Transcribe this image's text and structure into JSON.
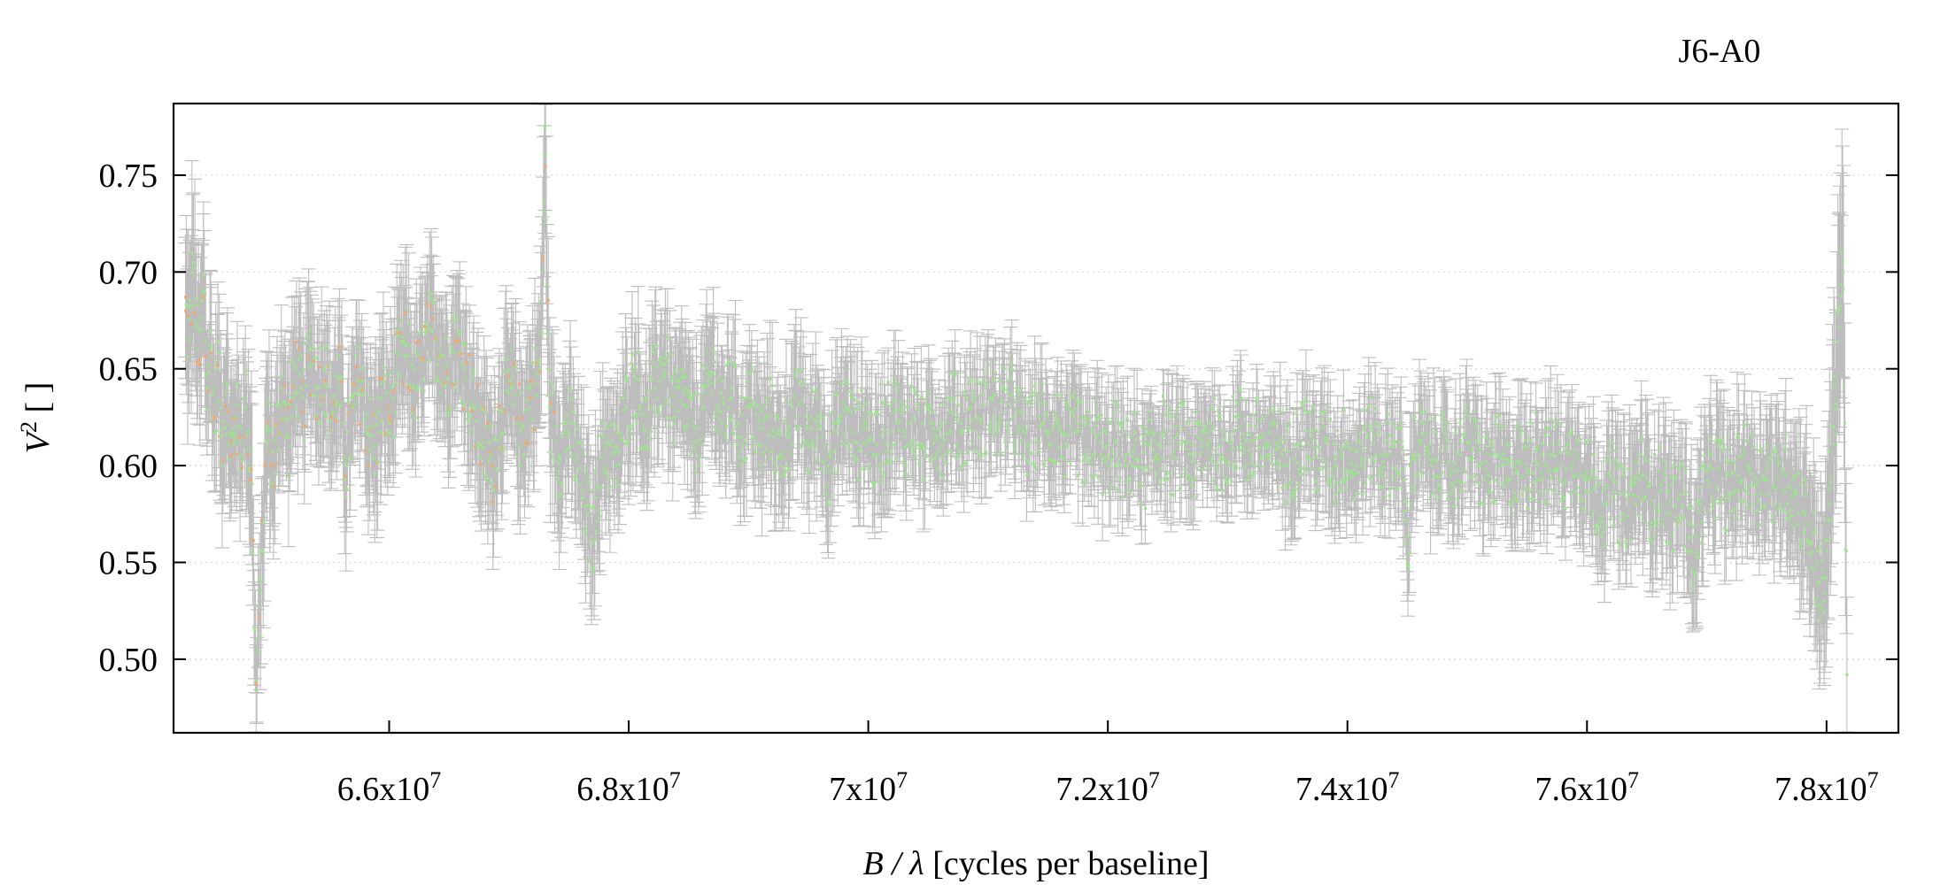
{
  "chart_data": {
    "type": "scatter",
    "title": "J6-A0",
    "xlabel": {
      "var": "B / λ",
      "unit": " [cycles per baseline]"
    },
    "ylabel": {
      "var": "V",
      "exp": "2",
      "unit": " [ ]"
    },
    "xlim": [
      64200000,
      78600000
    ],
    "ylim": [
      0.462,
      0.787
    ],
    "grid": {
      "x": false,
      "y": true
    },
    "x_ticks": [
      {
        "mant": "6.6x10",
        "exp": "7",
        "value": 66000000
      },
      {
        "mant": "6.8x10",
        "exp": "7",
        "value": 68000000
      },
      {
        "mant": "7x10",
        "exp": "7",
        "value": 70000000
      },
      {
        "mant": "7.2x10",
        "exp": "7",
        "value": 72000000
      },
      {
        "mant": "7.4x10",
        "exp": "7",
        "value": 74000000
      },
      {
        "mant": "7.6x10",
        "exp": "7",
        "value": 76000000
      },
      {
        "mant": "7.8x10",
        "exp": "7",
        "value": 78000000
      }
    ],
    "y_ticks": [
      {
        "label": "0.50",
        "value": 0.5
      },
      {
        "label": "0.55",
        "value": 0.55
      },
      {
        "label": "0.60",
        "value": 0.6
      },
      {
        "label": "0.65",
        "value": 0.65
      },
      {
        "label": "0.70",
        "value": 0.7
      },
      {
        "label": "0.75",
        "value": 0.75
      }
    ],
    "colors": {
      "errorbar": "#bdbdbd",
      "point_main": "#9ee38f",
      "point_alt": "#f2a96b",
      "grid": "#d9d9d9"
    },
    "series": [
      {
        "points": [
          [
            64300000,
            0.68,
            0.035
          ],
          [
            64330000,
            0.665,
            0.038
          ],
          [
            64360000,
            0.7,
            0.04
          ],
          [
            64390000,
            0.672,
            0.036
          ],
          [
            64420000,
            0.655,
            0.034
          ],
          [
            64450000,
            0.69,
            0.04
          ],
          [
            64480000,
            0.64,
            0.03
          ],
          [
            64510000,
            0.66,
            0.032
          ],
          [
            64540000,
            0.625,
            0.03
          ],
          [
            64570000,
            0.65,
            0.028
          ],
          [
            64600000,
            0.615,
            0.034
          ],
          [
            64640000,
            0.638,
            0.03
          ],
          [
            64680000,
            0.605,
            0.032
          ],
          [
            64720000,
            0.625,
            0.028
          ],
          [
            64760000,
            0.612,
            0.03
          ],
          [
            64800000,
            0.63,
            0.026
          ],
          [
            64850000,
            0.598,
            0.04
          ],
          [
            64890000,
            0.484,
            0.022
          ],
          [
            64930000,
            0.54,
            0.03
          ],
          [
            64980000,
            0.62,
            0.034
          ],
          [
            65040000,
            0.6,
            0.03
          ],
          [
            65100000,
            0.64,
            0.03
          ],
          [
            65160000,
            0.615,
            0.028
          ],
          [
            65220000,
            0.65,
            0.032
          ],
          [
            65280000,
            0.628,
            0.03
          ],
          [
            65340000,
            0.66,
            0.03
          ],
          [
            65400000,
            0.64,
            0.028
          ],
          [
            65460000,
            0.65,
            0.03
          ],
          [
            65520000,
            0.625,
            0.028
          ],
          [
            65580000,
            0.645,
            0.03
          ],
          [
            65640000,
            0.6,
            0.032
          ],
          [
            65700000,
            0.63,
            0.028
          ],
          [
            65760000,
            0.645,
            0.03
          ],
          [
            65820000,
            0.62,
            0.03
          ],
          [
            65880000,
            0.61,
            0.034
          ],
          [
            65940000,
            0.635,
            0.03
          ],
          [
            66000000,
            0.625,
            0.03
          ],
          [
            66070000,
            0.648,
            0.028
          ],
          [
            66140000,
            0.662,
            0.03
          ],
          [
            66210000,
            0.64,
            0.028
          ],
          [
            66280000,
            0.655,
            0.03
          ],
          [
            66350000,
            0.67,
            0.028
          ],
          [
            66420000,
            0.66,
            0.028
          ],
          [
            66490000,
            0.645,
            0.03
          ],
          [
            66560000,
            0.665,
            0.028
          ],
          [
            66630000,
            0.65,
            0.03
          ],
          [
            66700000,
            0.63,
            0.03
          ],
          [
            66780000,
            0.612,
            0.032
          ],
          [
            66860000,
            0.6,
            0.03
          ],
          [
            66940000,
            0.628,
            0.03
          ],
          [
            67020000,
            0.64,
            0.03
          ],
          [
            67100000,
            0.618,
            0.03
          ],
          [
            67180000,
            0.635,
            0.03
          ],
          [
            67260000,
            0.65,
            0.03
          ],
          [
            67300000,
            0.76,
            0.04
          ],
          [
            67340000,
            0.63,
            0.03
          ],
          [
            67420000,
            0.605,
            0.03
          ],
          [
            67500000,
            0.622,
            0.028
          ],
          [
            67580000,
            0.598,
            0.028
          ],
          [
            67660000,
            0.575,
            0.03
          ],
          [
            67700000,
            0.56,
            0.026
          ],
          [
            67740000,
            0.59,
            0.028
          ],
          [
            67820000,
            0.612,
            0.028
          ],
          [
            67900000,
            0.6,
            0.026
          ],
          [
            67980000,
            0.63,
            0.028
          ],
          [
            68060000,
            0.645,
            0.028
          ],
          [
            68140000,
            0.618,
            0.028
          ],
          [
            68220000,
            0.64,
            0.026
          ],
          [
            68300000,
            0.652,
            0.028
          ],
          [
            68380000,
            0.625,
            0.028
          ],
          [
            68460000,
            0.638,
            0.026
          ],
          [
            68540000,
            0.612,
            0.028
          ],
          [
            68620000,
            0.63,
            0.026
          ],
          [
            68700000,
            0.648,
            0.028
          ],
          [
            68780000,
            0.622,
            0.026
          ],
          [
            68860000,
            0.64,
            0.028
          ],
          [
            68940000,
            0.615,
            0.026
          ],
          [
            69020000,
            0.632,
            0.026
          ],
          [
            69100000,
            0.61,
            0.026
          ],
          [
            69180000,
            0.625,
            0.026
          ],
          [
            69260000,
            0.605,
            0.026
          ],
          [
            69340000,
            0.62,
            0.026
          ],
          [
            69420000,
            0.632,
            0.026
          ],
          [
            69500000,
            0.612,
            0.026
          ],
          [
            69580000,
            0.625,
            0.024
          ],
          [
            69660000,
            0.6,
            0.026
          ],
          [
            69740000,
            0.618,
            0.024
          ],
          [
            69820000,
            0.63,
            0.024
          ],
          [
            69900000,
            0.612,
            0.024
          ],
          [
            69980000,
            0.622,
            0.024
          ],
          [
            70060000,
            0.605,
            0.024
          ],
          [
            70140000,
            0.618,
            0.024
          ],
          [
            70220000,
            0.628,
            0.022
          ],
          [
            70300000,
            0.615,
            0.022
          ],
          [
            70380000,
            0.625,
            0.022
          ],
          [
            70460000,
            0.61,
            0.022
          ],
          [
            70540000,
            0.622,
            0.02
          ],
          [
            70620000,
            0.615,
            0.02
          ],
          [
            70700000,
            0.628,
            0.02
          ],
          [
            70780000,
            0.618,
            0.02
          ],
          [
            70860000,
            0.63,
            0.02
          ],
          [
            70940000,
            0.622,
            0.02
          ],
          [
            71020000,
            0.635,
            0.02
          ],
          [
            71100000,
            0.625,
            0.02
          ],
          [
            71180000,
            0.632,
            0.02
          ],
          [
            71260000,
            0.62,
            0.02
          ],
          [
            71340000,
            0.612,
            0.02
          ],
          [
            71420000,
            0.625,
            0.02
          ],
          [
            71500000,
            0.615,
            0.02
          ],
          [
            71580000,
            0.622,
            0.02
          ],
          [
            71660000,
            0.61,
            0.02
          ],
          [
            71740000,
            0.618,
            0.02
          ],
          [
            71820000,
            0.605,
            0.02
          ],
          [
            71900000,
            0.615,
            0.02
          ],
          [
            71980000,
            0.602,
            0.02
          ],
          [
            72060000,
            0.612,
            0.018
          ],
          [
            72140000,
            0.6,
            0.018
          ],
          [
            72220000,
            0.61,
            0.018
          ],
          [
            72300000,
            0.598,
            0.018
          ],
          [
            72380000,
            0.608,
            0.018
          ],
          [
            72460000,
            0.615,
            0.018
          ],
          [
            72540000,
            0.605,
            0.018
          ],
          [
            72620000,
            0.612,
            0.018
          ],
          [
            72700000,
            0.602,
            0.018
          ],
          [
            72780000,
            0.61,
            0.018
          ],
          [
            72860000,
            0.618,
            0.018
          ],
          [
            72940000,
            0.605,
            0.018
          ],
          [
            73020000,
            0.612,
            0.018
          ],
          [
            73100000,
            0.62,
            0.018
          ],
          [
            73180000,
            0.608,
            0.018
          ],
          [
            73260000,
            0.615,
            0.018
          ],
          [
            73340000,
            0.605,
            0.02
          ],
          [
            73420000,
            0.612,
            0.02
          ],
          [
            73500000,
            0.6,
            0.02
          ],
          [
            73580000,
            0.61,
            0.02
          ],
          [
            73660000,
            0.618,
            0.02
          ],
          [
            73740000,
            0.605,
            0.02
          ],
          [
            73820000,
            0.612,
            0.02
          ],
          [
            73900000,
            0.6,
            0.02
          ],
          [
            73980000,
            0.61,
            0.02
          ],
          [
            74060000,
            0.598,
            0.02
          ],
          [
            74140000,
            0.608,
            0.02
          ],
          [
            74220000,
            0.615,
            0.02
          ],
          [
            74300000,
            0.602,
            0.02
          ],
          [
            74380000,
            0.61,
            0.02
          ],
          [
            74460000,
            0.598,
            0.022
          ],
          [
            74500000,
            0.55,
            0.02
          ],
          [
            74540000,
            0.605,
            0.022
          ],
          [
            74620000,
            0.612,
            0.022
          ],
          [
            74700000,
            0.6,
            0.022
          ],
          [
            74780000,
            0.608,
            0.022
          ],
          [
            74860000,
            0.595,
            0.022
          ],
          [
            74940000,
            0.605,
            0.022
          ],
          [
            75020000,
            0.612,
            0.022
          ],
          [
            75100000,
            0.6,
            0.022
          ],
          [
            75180000,
            0.595,
            0.022
          ],
          [
            75260000,
            0.605,
            0.022
          ],
          [
            75340000,
            0.592,
            0.022
          ],
          [
            75420000,
            0.602,
            0.022
          ],
          [
            75500000,
            0.598,
            0.022
          ],
          [
            75580000,
            0.608,
            0.022
          ],
          [
            75660000,
            0.6,
            0.022
          ],
          [
            75740000,
            0.605,
            0.022
          ],
          [
            75820000,
            0.598,
            0.022
          ],
          [
            75900000,
            0.608,
            0.022
          ],
          [
            75980000,
            0.595,
            0.024
          ],
          [
            76060000,
            0.588,
            0.024
          ],
          [
            76140000,
            0.58,
            0.024
          ],
          [
            76220000,
            0.592,
            0.024
          ],
          [
            76300000,
            0.575,
            0.026
          ],
          [
            76380000,
            0.585,
            0.026
          ],
          [
            76460000,
            0.595,
            0.026
          ],
          [
            76540000,
            0.582,
            0.026
          ],
          [
            76620000,
            0.59,
            0.026
          ],
          [
            76700000,
            0.575,
            0.028
          ],
          [
            76780000,
            0.585,
            0.026
          ],
          [
            76860000,
            0.57,
            0.028
          ],
          [
            76900000,
            0.545,
            0.03
          ],
          [
            76940000,
            0.58,
            0.028
          ],
          [
            77020000,
            0.59,
            0.026
          ],
          [
            77100000,
            0.598,
            0.026
          ],
          [
            77180000,
            0.585,
            0.026
          ],
          [
            77260000,
            0.595,
            0.026
          ],
          [
            77340000,
            0.6,
            0.026
          ],
          [
            77420000,
            0.59,
            0.026
          ],
          [
            77500000,
            0.598,
            0.026
          ],
          [
            77580000,
            0.588,
            0.028
          ],
          [
            77660000,
            0.595,
            0.028
          ],
          [
            77740000,
            0.585,
            0.03
          ],
          [
            77820000,
            0.575,
            0.032
          ],
          [
            77880000,
            0.56,
            0.034
          ],
          [
            77940000,
            0.54,
            0.036
          ],
          [
            77980000,
            0.53,
            0.04
          ],
          [
            78020000,
            0.58,
            0.04
          ],
          [
            78060000,
            0.62,
            0.045
          ],
          [
            78100000,
            0.68,
            0.05
          ],
          [
            78140000,
            0.7,
            0.055
          ],
          [
            78170000,
            0.492,
            0.04
          ]
        ]
      }
    ]
  }
}
